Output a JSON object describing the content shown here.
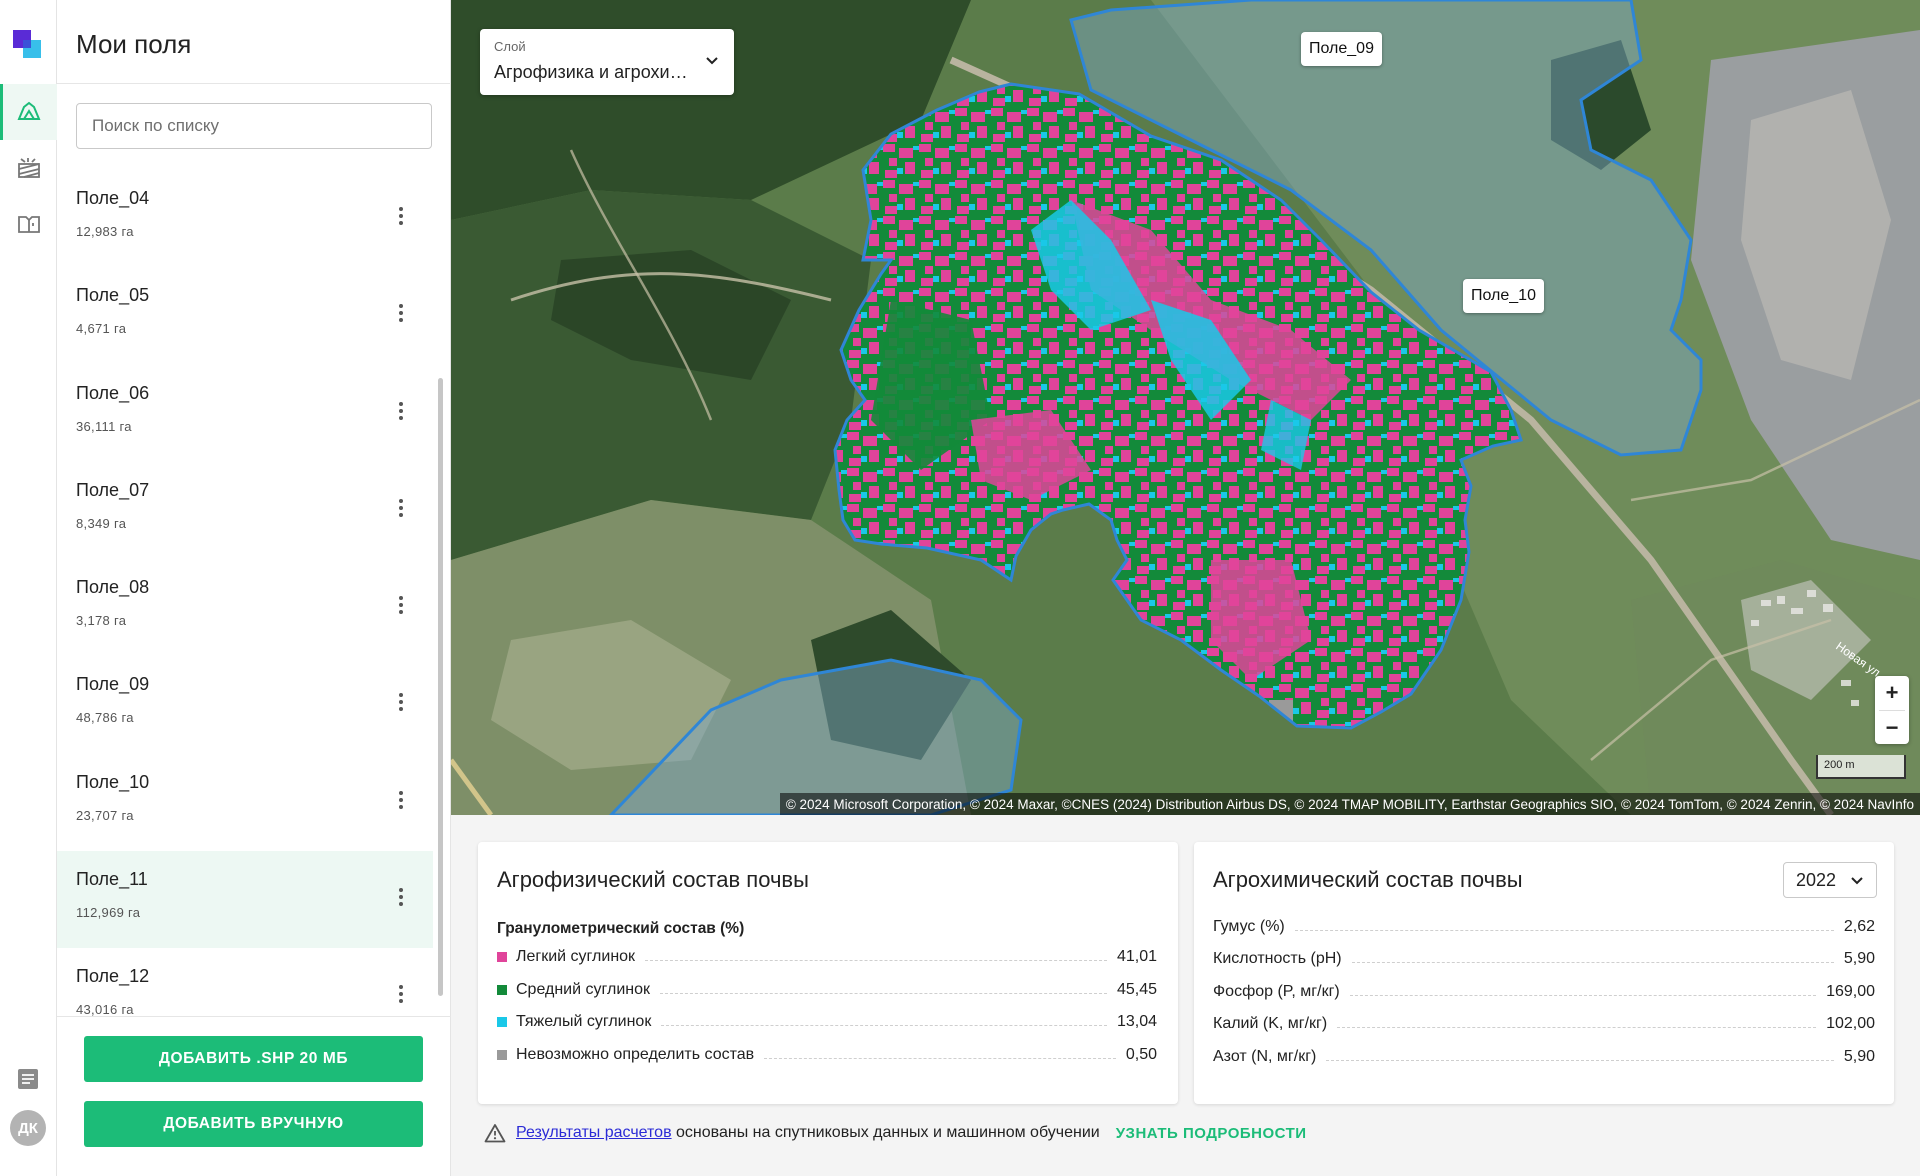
{
  "sidebar": {
    "title": "Мои поля",
    "search_placeholder": "Поиск по списку",
    "fields": [
      {
        "name": "Поле_04",
        "area": "12,983 га",
        "selected": false
      },
      {
        "name": "Поле_05",
        "area": "4,671 га",
        "selected": false
      },
      {
        "name": "Поле_06",
        "area": "36,111 га",
        "selected": false
      },
      {
        "name": "Поле_07",
        "area": "8,349 га",
        "selected": false
      },
      {
        "name": "Поле_08",
        "area": "3,178 га",
        "selected": false
      },
      {
        "name": "Поле_09",
        "area": "48,786 га",
        "selected": false
      },
      {
        "name": "Поле_10",
        "area": "23,707 га",
        "selected": false
      },
      {
        "name": "Поле_11",
        "area": "112,969 га",
        "selected": true
      },
      {
        "name": "Поле_12",
        "area": "43,016 га",
        "selected": false
      }
    ],
    "add_shp_label": "ДОБАВИТЬ .SHP 20 МБ",
    "add_manual_label": "ДОБАВИТЬ ВРУЧНУЮ"
  },
  "rail": {
    "items": [
      "fields-icon",
      "crops-icon",
      "map-book-icon"
    ],
    "bottom_icon": "document-icon",
    "avatar_initials": "ДК"
  },
  "map": {
    "layer_label": "Слой",
    "layer_value": "Агрофизика и агрохимия",
    "tags": [
      "Поле_09",
      "Поле_10"
    ],
    "zoom_in": "+",
    "zoom_out": "−",
    "scale_label": "200 m",
    "street_label": "Новая ул",
    "attribution": "© 2024 Microsoft Corporation, © 2024 Maxar, ©CNES (2024) Distribution Airbus DS, © 2024 TMAP MOBILITY, Earthstar Geographics SIO, © 2024 TomTom, © 2024 Zenrin, © 2024 NavInfo"
  },
  "colors": {
    "accent": "#1cbc78",
    "light_loam": "#e0449a",
    "medium_loam": "#138a3a",
    "heavy_loam": "#1ac8e8",
    "undetermined": "#9a9a9a",
    "field_outline": "#2f86d6"
  },
  "agrophysics": {
    "title": "Агрофизический состав почвы",
    "subtitle": "Гранулометрический состав (%)",
    "rows": [
      {
        "label": "Легкий суглинок",
        "value": "41,01",
        "color": "#e0449a"
      },
      {
        "label": "Средний суглинок",
        "value": "45,45",
        "color": "#138a3a"
      },
      {
        "label": "Тяжелый суглинок",
        "value": "13,04",
        "color": "#1ac8e8"
      },
      {
        "label": "Невозможно определить состав",
        "value": "0,50",
        "color": "#9a9a9a"
      }
    ]
  },
  "agrochemistry": {
    "title": "Агрохимический состав почвы",
    "year": "2022",
    "rows": [
      {
        "label": "Гумус (%)",
        "value": "2,62"
      },
      {
        "label": "Кислотность (pH)",
        "value": "5,90"
      },
      {
        "label": "Фосфор (P, мг/кг)",
        "value": "169,00"
      },
      {
        "label": "Калий (K, мг/кг)",
        "value": "102,00"
      },
      {
        "label": "Азот (N, мг/кг)",
        "value": "5,90"
      }
    ]
  },
  "note": {
    "link_text": "Результаты расчетов",
    "text": "основаны на спутниковых данных и машинном обучении",
    "more_label": "УЗНАТЬ ПОДРОБНОСТИ"
  }
}
